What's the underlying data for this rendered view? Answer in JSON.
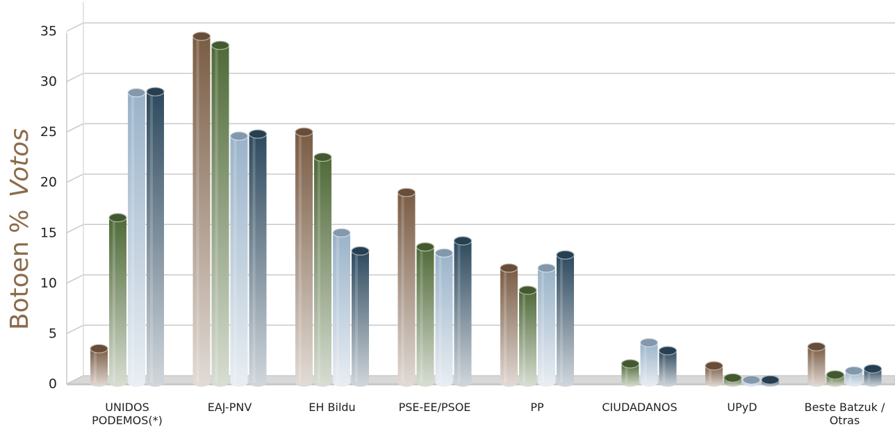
{
  "chart_data": {
    "type": "bar",
    "ylabel": "Botoen % Votos",
    "ylabel_parts": [
      "Botoen %",
      "Votos"
    ],
    "ylim": [
      0,
      35
    ],
    "yticks": [
      "0",
      "5",
      "10",
      "15",
      "20",
      "25",
      "30",
      "35"
    ],
    "grid": true,
    "categories": [
      [
        "UNIDOS",
        "PODEMOS(*)"
      ],
      [
        "EAJ-PNV"
      ],
      [
        "EH Bildu"
      ],
      [
        "PSE-EE/PSOE"
      ],
      [
        "PP"
      ],
      [
        "CIUDADANOS"
      ],
      [
        "UPyD"
      ],
      [
        "Beste Batzuk /",
        "Otras"
      ]
    ],
    "series": [
      {
        "color": "#7a5c44",
        "values": [
          3.5,
          34.5,
          25.0,
          19.0,
          11.5,
          0,
          1.8,
          3.7
        ]
      },
      {
        "color": "#4f6a38",
        "values": [
          16.5,
          33.6,
          22.5,
          13.6,
          9.3,
          2.0,
          0.6,
          0.9
        ]
      },
      {
        "color": "#9ab3c9",
        "values": [
          28.9,
          24.6,
          15.0,
          13.0,
          11.5,
          4.1,
          0.4,
          1.3
        ]
      },
      {
        "color": "#2e4a5f",
        "values": [
          29.0,
          24.8,
          13.2,
          14.2,
          12.8,
          3.3,
          0.4,
          1.5
        ]
      }
    ]
  }
}
